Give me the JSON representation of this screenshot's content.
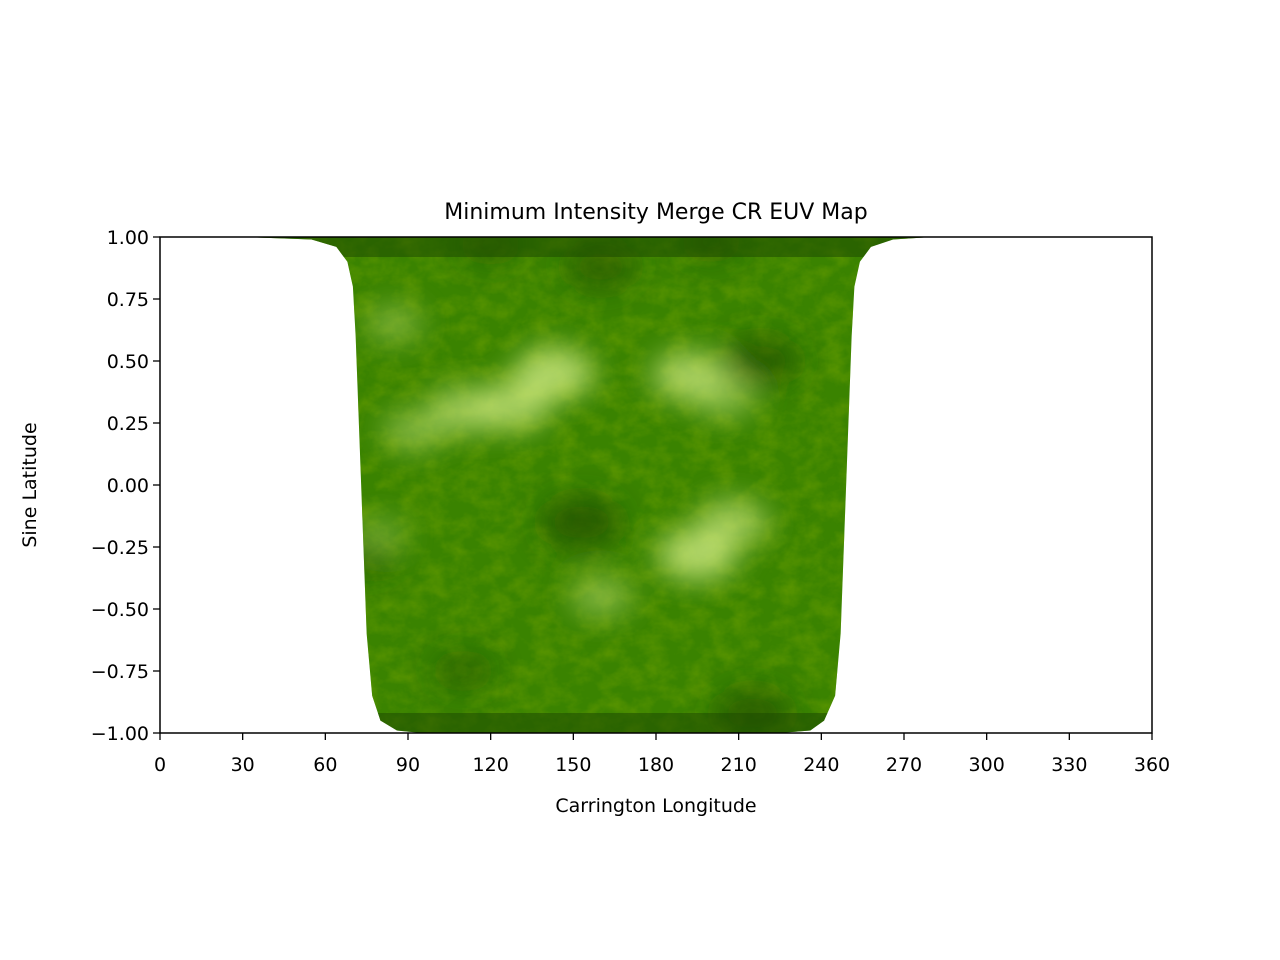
{
  "chart_data": {
    "type": "heatmap",
    "title": "Minimum Intensity Merge CR EUV Map",
    "xlabel": "Carrington Longitude",
    "ylabel": "Sine Latitude",
    "xlim": [
      0,
      360
    ],
    "ylim": [
      -1.0,
      1.0
    ],
    "xticks": [
      0,
      30,
      60,
      90,
      120,
      150,
      180,
      210,
      240,
      270,
      300,
      330,
      360
    ],
    "xtick_labels": [
      "0",
      "30",
      "60",
      "90",
      "120",
      "150",
      "180",
      "210",
      "240",
      "270",
      "300",
      "330",
      "360"
    ],
    "yticks": [
      1.0,
      0.75,
      0.5,
      0.25,
      0.0,
      -0.25,
      -0.5,
      -0.75,
      -1.0
    ],
    "ytick_labels": [
      "1.00",
      "0.75",
      "0.50",
      "0.25",
      "0.00",
      "−0.25",
      "−0.50",
      "−0.75",
      "−1.00"
    ],
    "grid": false,
    "colormap": "green (dark green to pale yellow-green)",
    "colors": {
      "dark": "#1f4a00",
      "mid": "#3d8a00",
      "bright": "#d8f28a",
      "highlight": "#f4ffd0"
    },
    "data_coverage": {
      "lon_range_at_equator": [
        72,
        250
      ],
      "lon_range_at_poles": [
        30,
        280
      ],
      "outline": [
        [
          30,
          1.0
        ],
        [
          55,
          0.99
        ],
        [
          64,
          0.96
        ],
        [
          68,
          0.9
        ],
        [
          70,
          0.8
        ],
        [
          71,
          0.6
        ],
        [
          72,
          0.3
        ],
        [
          73,
          0.0
        ],
        [
          74,
          -0.3
        ],
        [
          75,
          -0.6
        ],
        [
          77,
          -0.85
        ],
        [
          80,
          -0.95
        ],
        [
          86,
          -0.99
        ],
        [
          95,
          -1.0
        ],
        [
          225,
          -1.0
        ],
        [
          236,
          -0.99
        ],
        [
          241,
          -0.95
        ],
        [
          245,
          -0.85
        ],
        [
          247,
          -0.6
        ],
        [
          248,
          -0.3
        ],
        [
          249,
          0.0
        ],
        [
          250,
          0.3
        ],
        [
          251,
          0.6
        ],
        [
          252,
          0.8
        ],
        [
          254,
          0.9
        ],
        [
          258,
          0.96
        ],
        [
          266,
          0.99
        ],
        [
          280,
          1.0
        ]
      ]
    },
    "features": [
      {
        "kind": "bright",
        "lon": 143,
        "sinlat": 0.45,
        "strength": 1.0
      },
      {
        "kind": "bright",
        "lon": 128,
        "sinlat": 0.32,
        "strength": 0.9
      },
      {
        "kind": "bright",
        "lon": 110,
        "sinlat": 0.3,
        "strength": 0.8
      },
      {
        "kind": "bright",
        "lon": 92,
        "sinlat": 0.22,
        "strength": 0.6
      },
      {
        "kind": "bright",
        "lon": 192,
        "sinlat": 0.44,
        "strength": 0.9
      },
      {
        "kind": "bright",
        "lon": 205,
        "sinlat": 0.35,
        "strength": 0.6
      },
      {
        "kind": "bright",
        "lon": 195,
        "sinlat": -0.28,
        "strength": 1.0
      },
      {
        "kind": "bright",
        "lon": 208,
        "sinlat": -0.15,
        "strength": 0.8
      },
      {
        "kind": "bright",
        "lon": 160,
        "sinlat": -0.45,
        "strength": 0.6
      },
      {
        "kind": "bright",
        "lon": 85,
        "sinlat": 0.65,
        "strength": 0.5
      },
      {
        "kind": "bright",
        "lon": 80,
        "sinlat": -0.2,
        "strength": 0.4
      },
      {
        "kind": "dark",
        "lon": 153,
        "sinlat": -0.15,
        "strength": 1.0
      },
      {
        "kind": "dark",
        "lon": 218,
        "sinlat": 0.5,
        "strength": 0.9
      },
      {
        "kind": "dark",
        "lon": 160,
        "sinlat": 0.88,
        "strength": 0.8
      },
      {
        "kind": "dark",
        "lon": 215,
        "sinlat": -0.92,
        "strength": 0.9
      },
      {
        "kind": "dark",
        "lon": 110,
        "sinlat": -0.75,
        "strength": 0.6
      },
      {
        "kind": "dark",
        "lon": 75,
        "sinlat": -0.3,
        "strength": 0.5
      },
      {
        "kind": "dark",
        "lon": 120,
        "sinlat": 0.97,
        "strength": 0.6
      },
      {
        "kind": "dark",
        "lon": 200,
        "sinlat": 0.98,
        "strength": 0.6
      }
    ]
  }
}
